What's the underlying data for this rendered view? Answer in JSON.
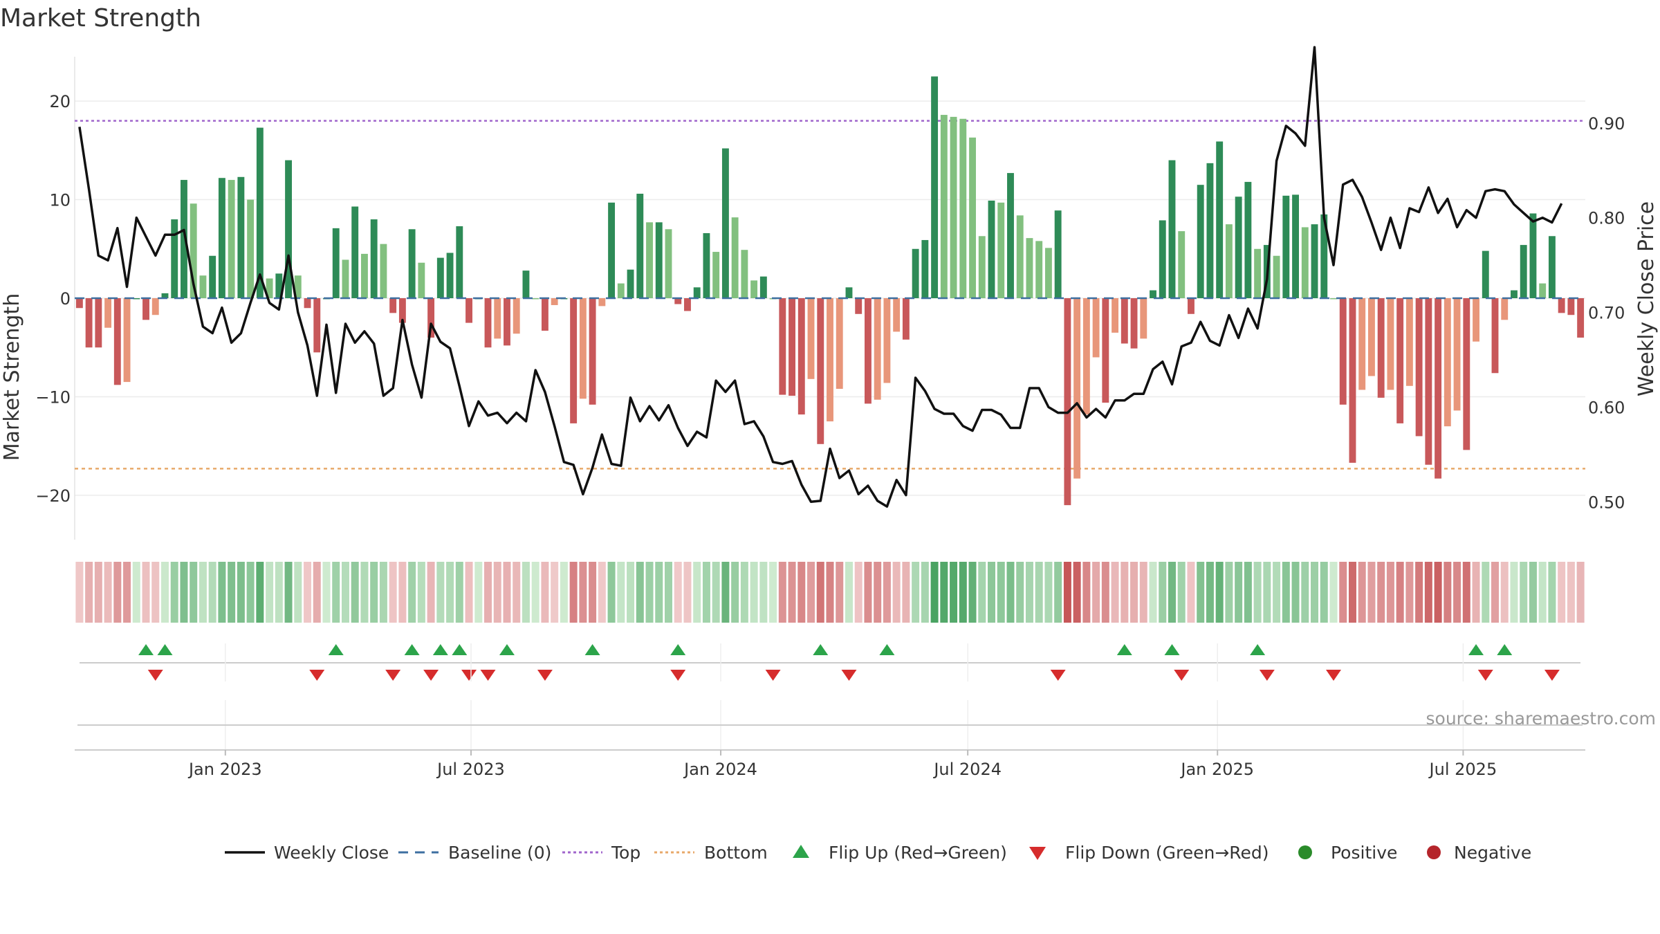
{
  "chart_data": {
    "type": "bar+line",
    "title": "Market Strength",
    "ylabel_left": "Market Strength",
    "ylabel_right": "Weekly Close Price",
    "ylim_left": [
      -24.5,
      24.5
    ],
    "ylim_right": [
      0.46,
      0.97
    ],
    "left_ticks": [
      {
        "v": 20,
        "label": "20"
      },
      {
        "v": 10,
        "label": "10"
      },
      {
        "v": 0,
        "label": "0"
      },
      {
        "v": -10,
        "label": "−10"
      },
      {
        "v": -20,
        "label": "−20"
      }
    ],
    "right_ticks": [
      {
        "v": 0.9,
        "label": "0.90"
      },
      {
        "v": 0.8,
        "label": "0.80"
      },
      {
        "v": 0.7,
        "label": "0.70"
      },
      {
        "v": 0.6,
        "label": "0.60"
      },
      {
        "v": 0.5,
        "label": "0.50"
      }
    ],
    "x_start": "2022-09-12",
    "x_end": "2025-09-29",
    "x_ticks": [
      {
        "date": "2023-01-01",
        "label": "Jan 2023"
      },
      {
        "date": "2023-07-01",
        "label": "Jul 2023"
      },
      {
        "date": "2024-01-01",
        "label": "Jan 2024"
      },
      {
        "date": "2024-07-01",
        "label": "Jul 2024"
      },
      {
        "date": "2025-01-01",
        "label": "Jan 2025"
      },
      {
        "date": "2025-07-01",
        "label": "Jul 2025"
      }
    ],
    "top_level": 18,
    "bottom_level": -17.3,
    "baseline": 0,
    "strength": [
      -1,
      -5,
      -5,
      -3,
      -8.8,
      -8.5,
      0,
      -2.2,
      -1.7,
      0.5,
      8,
      12,
      9.6,
      2.3,
      4.3,
      12.2,
      12,
      12.3,
      10,
      17.3,
      2,
      2.5,
      14,
      2.3,
      -1,
      -5.5,
      0,
      7.1,
      3.9,
      9.3,
      4.5,
      8,
      5.5,
      -1.5,
      -2.5,
      7,
      3.6,
      -4,
      4.1,
      4.6,
      7.3,
      -2.5,
      0,
      -5,
      -4.1,
      -4.8,
      -3.6,
      2.8,
      0,
      -3.3,
      -0.7,
      0,
      -12.7,
      -10.2,
      -10.8,
      -0.8,
      9.7,
      1.5,
      2.9,
      10.6,
      7.7,
      7.7,
      7,
      -0.6,
      -1.3,
      1.1,
      6.6,
      4.7,
      15.2,
      8.2,
      4.9,
      1.8,
      2.2,
      0,
      -9.8,
      -9.9,
      -11.8,
      -8.2,
      -14.8,
      -12.5,
      -9.2,
      1.1,
      -1.6,
      -10.7,
      -10.3,
      -8.6,
      -3.4,
      -4.2,
      5,
      5.9,
      22.5,
      18.6,
      18.4,
      18.2,
      16.3,
      6.3,
      9.9,
      9.7,
      12.7,
      8.4,
      6.1,
      5.8,
      5.1,
      8.9,
      -21,
      -18.3,
      -11.8,
      -6,
      -10.6,
      -3.5,
      -4.6,
      -5.1,
      -4.1,
      0.8,
      7.9,
      14,
      6.8,
      -1.6,
      11.5,
      13.7,
      15.9,
      7.5,
      10.3,
      11.8,
      5,
      5.4,
      4.3,
      10.4,
      10.5,
      7.2,
      7.5,
      8.5,
      0,
      -10.8,
      -16.7,
      -9.3,
      -7.9,
      -10.1,
      -9.3,
      -12.7,
      -8.9,
      -14,
      -16.9,
      -18.3,
      -13,
      -11.4,
      -15.4,
      -4.4,
      4.8,
      -7.6,
      -2.2,
      0.8,
      5.4,
      8.6,
      1.5,
      6.3,
      -1.5,
      -1.7,
      -4
    ],
    "close": [
      0.896,
      0.83,
      0.76,
      0.755,
      0.789,
      0.727,
      0.8,
      0.78,
      0.76,
      0.782,
      0.782,
      0.787,
      0.73,
      0.685,
      0.678,
      0.705,
      0.668,
      0.678,
      0.71,
      0.74,
      0.71,
      0.703,
      0.76,
      0.7,
      0.665,
      0.612,
      0.687,
      0.615,
      0.688,
      0.668,
      0.68,
      0.667,
      0.612,
      0.62,
      0.692,
      0.645,
      0.61,
      0.688,
      0.669,
      0.662,
      0.622,
      0.58,
      0.606,
      0.591,
      0.594,
      0.583,
      0.594,
      0.585,
      0.639,
      0.616,
      0.58,
      0.542,
      0.539,
      0.508,
      0.536,
      0.571,
      0.54,
      0.538,
      0.61,
      0.585,
      0.601,
      0.586,
      0.602,
      0.578,
      0.559,
      0.574,
      0.568,
      0.628,
      0.616,
      0.628,
      0.582,
      0.585,
      0.569,
      0.542,
      0.54,
      0.543,
      0.518,
      0.5,
      0.501,
      0.556,
      0.525,
      0.533,
      0.508,
      0.517,
      0.501,
      0.495,
      0.523,
      0.507,
      0.631,
      0.617,
      0.598,
      0.593,
      0.593,
      0.58,
      0.575,
      0.597,
      0.597,
      0.592,
      0.578,
      0.578,
      0.62,
      0.62,
      0.6,
      0.594,
      0.594,
      0.604,
      0.589,
      0.598,
      0.589,
      0.607,
      0.607,
      0.614,
      0.614,
      0.64,
      0.648,
      0.624,
      0.664,
      0.668,
      0.69,
      0.67,
      0.665,
      0.697,
      0.673,
      0.704,
      0.683,
      0.735,
      0.86,
      0.897,
      0.889,
      0.876,
      0.98,
      0.8,
      0.75,
      0.835,
      0.84,
      0.822,
      0.795,
      0.766,
      0.8,
      0.768,
      0.81,
      0.806,
      0.832,
      0.805,
      0.82,
      0.79,
      0.808,
      0.8,
      0.828,
      0.83,
      0.828,
      0.814,
      0.805,
      0.796,
      0.8,
      0.795,
      0.815
    ],
    "flip_up_weeks": [
      7,
      9,
      27,
      35,
      38,
      40,
      45,
      54,
      63,
      78,
      85,
      110,
      115,
      124,
      147,
      150
    ],
    "flip_down_weeks": [
      8,
      25,
      33,
      37,
      41,
      43,
      49,
      63,
      73,
      81,
      103,
      116,
      125,
      132,
      148,
      155
    ],
    "legend": [
      {
        "key": "close",
        "label": "Weekly Close",
        "color": "#111111"
      },
      {
        "key": "baseline",
        "label": "Baseline (0)",
        "color": "#3d6fa0"
      },
      {
        "key": "top",
        "label": "Top",
        "color": "#a066cc"
      },
      {
        "key": "bottom",
        "label": "Bottom",
        "color": "#e8a96a"
      },
      {
        "key": "flipup",
        "label": "Flip Up (Red→Green)",
        "color": "#2ca44a"
      },
      {
        "key": "flipdown",
        "label": "Flip Down (Green→Red)",
        "color": "#d62c2c"
      },
      {
        "key": "positive",
        "label": "Positive",
        "color": "#2a8b2a"
      },
      {
        "key": "negative",
        "label": "Negative",
        "color": "#b5252b"
      }
    ],
    "source": "source: sharemaestro.com"
  }
}
